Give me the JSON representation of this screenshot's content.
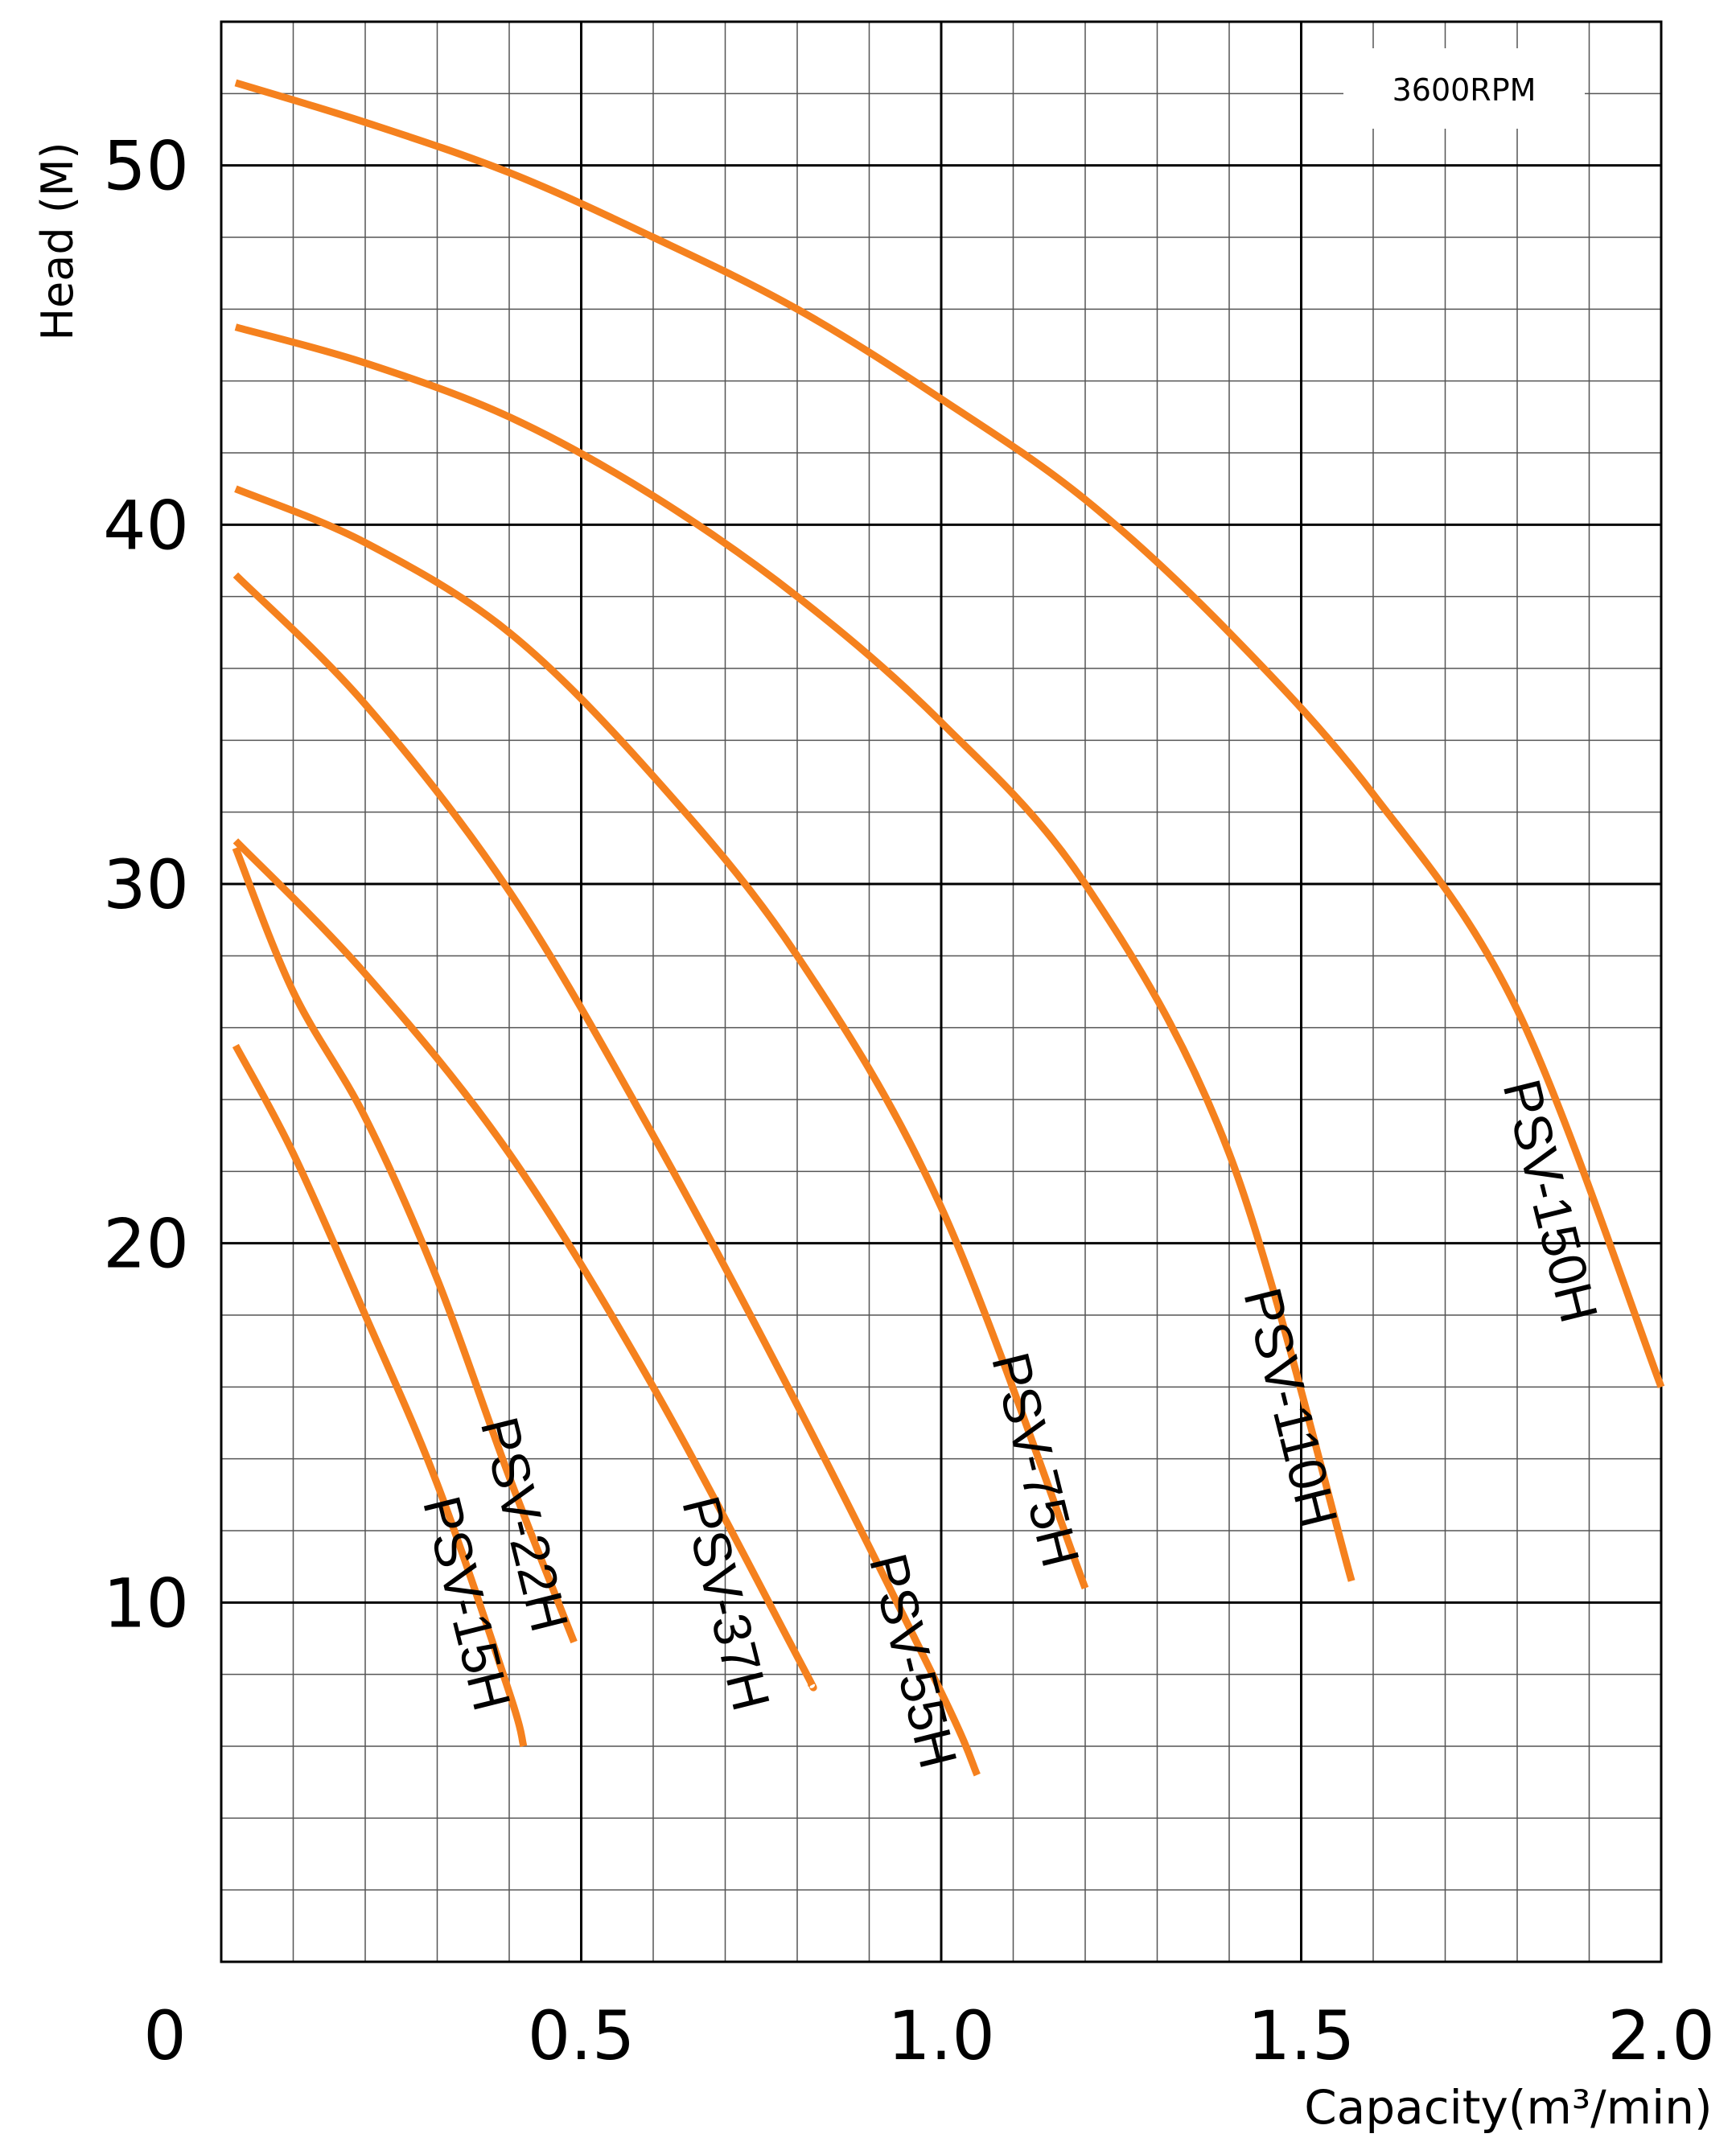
{
  "chart_data": {
    "type": "line",
    "title": "",
    "xlabel": "Capacity(m³/min)",
    "ylabel": "Head (M)",
    "xlim": [
      0,
      2.0
    ],
    "ylim": [
      0,
      54
    ],
    "grid": true,
    "x_tick_labels": [
      "0",
      "0.5",
      "1.0",
      "1.5",
      "2.0"
    ],
    "y_tick_labels": [
      "10",
      "20",
      "30",
      "40",
      "50"
    ],
    "annotation": "3600RPM",
    "series_color": "#f5811e",
    "series": [
      {
        "name": "PSV-15H",
        "x": [
          0.02,
          0.1,
          0.2,
          0.3,
          0.4,
          0.42
        ],
        "y": [
          25.5,
          22.5,
          18,
          13.3,
          7.5,
          6.0
        ]
      },
      {
        "name": "PSV-22H",
        "x": [
          0.02,
          0.1,
          0.2,
          0.3,
          0.4,
          0.49
        ],
        "y": [
          31.0,
          27.0,
          23.5,
          19.0,
          13.5,
          8.9
        ]
      },
      {
        "name": "PSV-37H",
        "x": [
          0.02,
          0.2,
          0.4,
          0.6,
          0.8,
          0.82
        ],
        "y": [
          31.2,
          27.5,
          22.5,
          16.0,
          8.5,
          7.7
        ]
      },
      {
        "name": "PSV-55H",
        "x": [
          0.02,
          0.2,
          0.4,
          0.6,
          0.8,
          1.0,
          1.05
        ],
        "y": [
          38.6,
          35.0,
          29.8,
          23.0,
          15.5,
          7.5,
          5.2
        ]
      },
      {
        "name": "PSV-75H",
        "x": [
          0.02,
          0.2,
          0.4,
          0.6,
          0.8,
          1.0,
          1.2
        ],
        "y": [
          41.0,
          39.5,
          37.0,
          33.0,
          28.0,
          21.0,
          10.4
        ]
      },
      {
        "name": "PSV-110H",
        "x": [
          0.02,
          0.2,
          0.4,
          0.6,
          0.8,
          1.0,
          1.2,
          1.4,
          1.57
        ],
        "y": [
          45.5,
          44.5,
          43.0,
          40.8,
          38.0,
          34.5,
          30.0,
          22.5,
          10.6
        ]
      },
      {
        "name": "PSV-150H",
        "x": [
          0.02,
          0.2,
          0.4,
          0.6,
          0.8,
          1.0,
          1.2,
          1.4,
          1.6,
          1.8,
          2.0
        ],
        "y": [
          52.3,
          51.2,
          49.8,
          48.0,
          46.0,
          43.5,
          40.7,
          37.0,
          32.5,
          26.5,
          16.0
        ]
      }
    ]
  }
}
